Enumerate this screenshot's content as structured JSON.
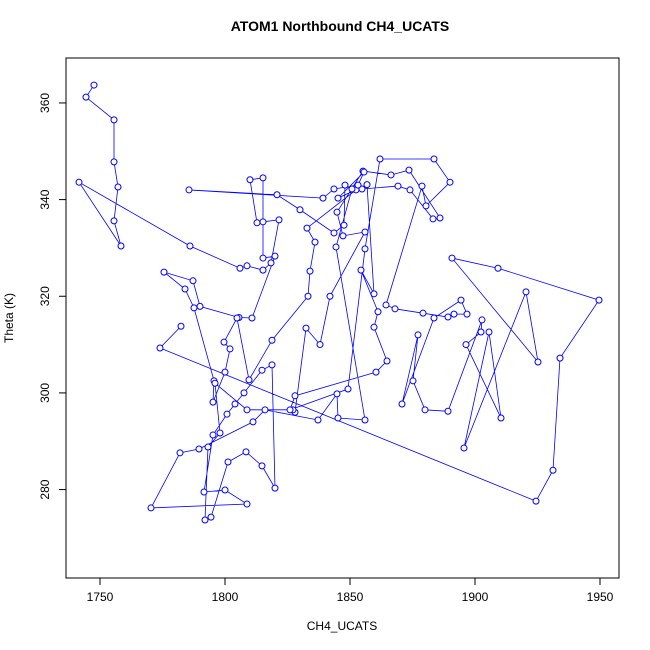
{
  "chart_data": {
    "type": "line",
    "title": "ATOM1 Northbound CH4_UCATS",
    "x_label": "CH4_UCATS",
    "y_label": "Theta (K)",
    "color": "#0000ff",
    "markers": "open-circle",
    "xlim": [
      1736.4,
      1957.6
    ],
    "ylim": [
      261.7,
      369.3
    ],
    "xticks": [
      1750,
      1800,
      1850,
      1900,
      1950
    ],
    "yticks": [
      280,
      300,
      320,
      340,
      360
    ],
    "x": [
      1747.6,
      1744.4,
      1755.6,
      1755.6,
      1757.2,
      1755.6,
      1758.4,
      1741.6,
      1786,
      1806,
      1808.8,
      1815.2,
      1818.4,
      1821.6,
      1815.2,
      1812.8,
      1810,
      1815.2,
      1815.2,
      1820,
      1810.8,
      1805.6,
      1790,
      1787.2,
      1775.6,
      1784,
      1787.6,
      1795.6,
      1795.2,
      1800,
      1802,
      1799.6,
      1804.8,
      1809.6,
      1818.8,
      1833.2,
      1834,
      1836,
      1832.8,
      1852.4,
      1854.8,
      1869.2,
      1874,
      1883.2,
      1886,
      1873.6,
      1866.4,
      1855.2,
      1844.8,
      1847.2,
      1856,
      1842,
      1838,
      1832.4,
      1828,
      1827.2,
      1808.8,
      1796,
      1798,
      1793.2,
      1792,
      1794.4,
      1801.2,
      1808.4,
      1814.8,
      1820,
      1818.8,
      1814.8,
      1807.6,
      1804,
      1800.8,
      1795.2,
      1791.6,
      1800,
      1808.8,
      1770.4,
      1782,
      1789.6,
      1811.2,
      1816,
      1837.2,
      1844.8,
      1845.2,
      1856,
      1844.4,
      1850.8,
      1848,
      1847.6,
      1843.6,
      1830,
      1820.8,
      1785.6,
      1839.2,
      1843.6,
      1853.2,
      1855.6,
      1845.2,
      1856.8,
      1859.6,
      1854.4,
      1861.2,
      1859.6,
      1864.8,
      1860.4,
      1828,
      1826,
      1849.2,
      1856,
      1862,
      1883.6,
      1890,
      1880.4,
      1878.8,
      1864.4,
      1868,
      1879.2,
      1889.2,
      1891.6,
      1896.8,
      1894.4,
      1883.6,
      1870.8,
      1877.2,
      1875.2,
      1880,
      1889.2,
      1902.8,
      1902.4,
      1896.4,
      1910.4,
      1905.6,
      1895.6,
      1920.4,
      1925.2,
      1890.8,
      1909.2,
      1949.6,
      1934,
      1931.2,
      1924.4,
      1774,
      1782.4
    ],
    "values": [
      363.7,
      361.2,
      356.5,
      347.8,
      342.6,
      335.6,
      330.4,
      343.6,
      330.4,
      325.8,
      326.3,
      325.4,
      326.9,
      335.8,
      335.4,
      335.2,
      344.1,
      344.5,
      327.9,
      328.3,
      315.5,
      315.6,
      317.9,
      323.2,
      325,
      321.5,
      317.6,
      302.5,
      298.1,
      304.3,
      309.1,
      310.5,
      315.5,
      302.7,
      310.9,
      320,
      325.2,
      331.2,
      334.1,
      342,
      342.2,
      342.8,
      342,
      336,
      336.2,
      346.1,
      345.1,
      345.9,
      337.4,
      332.5,
      333.3,
      320,
      310,
      313.4,
      296,
      296.5,
      296.5,
      302,
      291.7,
      288.8,
      273.7,
      274.3,
      285.7,
      287.8,
      284.9,
      280.3,
      305.8,
      304.7,
      300,
      297.7,
      295.6,
      291.3,
      279.5,
      279.9,
      277,
      276.2,
      287.6,
      288.4,
      294,
      296.5,
      294.4,
      299.8,
      294.8,
      294.4,
      330.2,
      342.2,
      343,
      334.7,
      333.1,
      337.9,
      341,
      342,
      340.3,
      342.2,
      343,
      345.7,
      340.3,
      343.1,
      320.5,
      325.4,
      316.8,
      313.6,
      306.6,
      304.3,
      299.4,
      296.5,
      300.8,
      329.8,
      348.4,
      348.4,
      343.6,
      338.7,
      342.8,
      318.2,
      317.4,
      316.5,
      315.7,
      316.3,
      316.3,
      319.2,
      315.5,
      297.7,
      312,
      302.5,
      296.5,
      296.2,
      315.1,
      312.6,
      310,
      294.8,
      312.6,
      288.6,
      320.9,
      306.4,
      327.9,
      325.8,
      319.2,
      307.2,
      284,
      277.6,
      309.3,
      313.8
    ]
  }
}
